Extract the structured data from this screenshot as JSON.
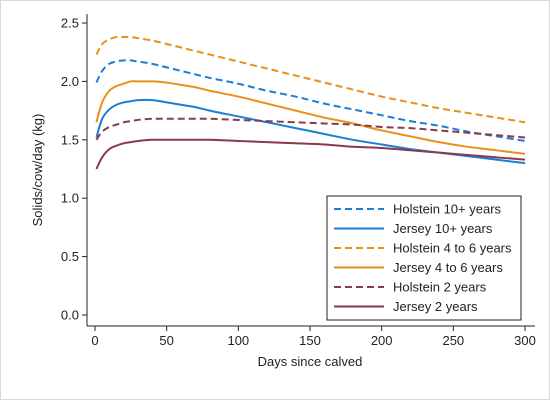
{
  "chart_data": {
    "type": "line",
    "xlabel": "Days since calved",
    "ylabel": "Solids/cow/day (kg)",
    "xlim": [
      0,
      300
    ],
    "ylim": [
      0,
      2.5
    ],
    "x_ticks": [
      0,
      50,
      100,
      150,
      200,
      250,
      300
    ],
    "y_ticks": [
      0.0,
      0.5,
      1.0,
      1.5,
      2.0,
      2.5
    ],
    "x_tick_labels": [
      "0",
      "50",
      "100",
      "150",
      "200",
      "250",
      "300"
    ],
    "y_tick_labels": [
      "0.0",
      "0.5",
      "1.0",
      "1.5",
      "2.0",
      "2.5"
    ],
    "grid": false,
    "legend_position": "bottom-right",
    "x": [
      1,
      5,
      10,
      15,
      20,
      25,
      30,
      40,
      50,
      60,
      70,
      80,
      100,
      120,
      140,
      160,
      180,
      200,
      220,
      240,
      260,
      280,
      300
    ],
    "series": [
      {
        "name": "Holstein 10+ years",
        "color": "#1a7fd6",
        "dash": "dashed",
        "values": [
          1.99,
          2.09,
          2.15,
          2.17,
          2.18,
          2.18,
          2.17,
          2.15,
          2.12,
          2.09,
          2.06,
          2.03,
          1.98,
          1.92,
          1.87,
          1.81,
          1.76,
          1.71,
          1.66,
          1.62,
          1.57,
          1.53,
          1.49
        ]
      },
      {
        "name": "Jersey 10+ years",
        "color": "#1a7fd6",
        "dash": "solid",
        "values": [
          1.52,
          1.68,
          1.76,
          1.8,
          1.82,
          1.83,
          1.84,
          1.84,
          1.82,
          1.8,
          1.78,
          1.75,
          1.7,
          1.65,
          1.6,
          1.55,
          1.5,
          1.46,
          1.42,
          1.39,
          1.36,
          1.33,
          1.3
        ]
      },
      {
        "name": "Holstein 4 to 6 years",
        "color": "#e8901a",
        "dash": "dashed",
        "values": [
          2.23,
          2.32,
          2.36,
          2.38,
          2.38,
          2.38,
          2.37,
          2.35,
          2.32,
          2.29,
          2.26,
          2.23,
          2.17,
          2.11,
          2.05,
          1.99,
          1.93,
          1.87,
          1.82,
          1.77,
          1.73,
          1.69,
          1.65
        ]
      },
      {
        "name": "Jersey 4 to 6 years",
        "color": "#e8901a",
        "dash": "solid",
        "values": [
          1.65,
          1.82,
          1.92,
          1.96,
          1.98,
          2.0,
          2.0,
          2.0,
          1.99,
          1.97,
          1.95,
          1.92,
          1.87,
          1.81,
          1.75,
          1.69,
          1.64,
          1.58,
          1.53,
          1.48,
          1.44,
          1.41,
          1.38
        ]
      },
      {
        "name": "Holstein 2 years",
        "color": "#8b3a4a",
        "dash": "dashed",
        "values": [
          1.5,
          1.57,
          1.61,
          1.63,
          1.65,
          1.66,
          1.67,
          1.68,
          1.68,
          1.68,
          1.68,
          1.68,
          1.67,
          1.66,
          1.65,
          1.64,
          1.63,
          1.61,
          1.6,
          1.58,
          1.56,
          1.54,
          1.52
        ]
      },
      {
        "name": "Jersey 2 years",
        "color": "#8b3a4a",
        "dash": "solid",
        "values": [
          1.25,
          1.35,
          1.42,
          1.45,
          1.47,
          1.48,
          1.49,
          1.5,
          1.5,
          1.5,
          1.5,
          1.5,
          1.49,
          1.48,
          1.47,
          1.46,
          1.44,
          1.43,
          1.41,
          1.39,
          1.37,
          1.35,
          1.33
        ]
      }
    ]
  }
}
